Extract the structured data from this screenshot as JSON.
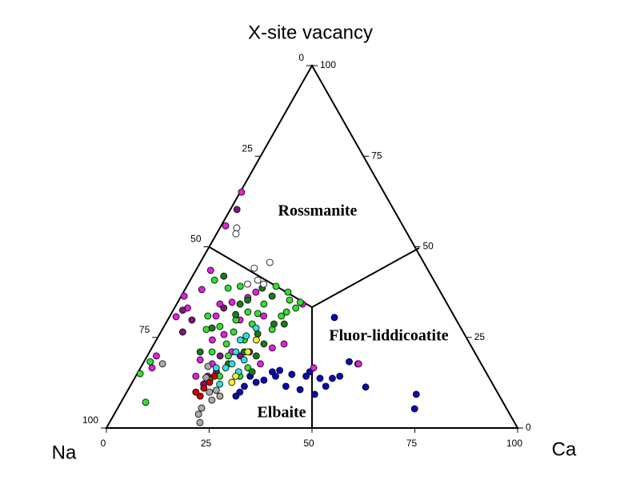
{
  "chart_data": {
    "type": "ternary",
    "top_label": "X-site vacancy",
    "left_label": "Na",
    "right_label": "Ca",
    "na_ticks": [
      0,
      25,
      50,
      75,
      100
    ],
    "vacancy_ticks": [
      0,
      25,
      50,
      75,
      100
    ],
    "ca_ticks": [
      0,
      25,
      50,
      75,
      100
    ],
    "fields": [
      "Rossmanite",
      "Fluor-liddicoatite",
      "Elbaite"
    ],
    "series": [
      {
        "color": "#0a0ab4",
        "x": [
          40.2,
          41.7,
          45.1,
          48.1,
          49.6,
          49.9,
          52.3,
          57.4,
          47.6,
          46.0,
          41.8,
          37.9,
          34.0,
          34.2,
          32.6,
          31.7,
          30.1,
          27.8,
          27.8,
          27.5,
          27.1,
          70.7,
          72.3,
          41.4,
          37.7
        ],
        "values": [
          30.5,
          15.5,
          13.7,
          13.7,
          14.3,
          18.3,
          17.7,
          11.3,
          11.5,
          9.3,
          10.6,
          11.5,
          14.3,
          15.9,
          15.5,
          13.2,
          12.6,
          14.3,
          11.5,
          9.9,
          8.8,
          9.3,
          5.3,
          14.3,
          14.8
        ]
      },
      {
        "color": "#dd22dd",
        "x": [
          0.3,
          1.1,
          3.6,
          4.1,
          3.2,
          1.6,
          0.7,
          2.2,
          2.8,
          10.5,
          11.2,
          13.2,
          16.4,
          17.6,
          15.7,
          13.6,
          17.6,
          22.8,
          29.3,
          31.6,
          13.4,
          14.6,
          16.9,
          20.0,
          28.6,
          30.6,
          42.1,
          52.5
        ],
        "values": [
          65.1,
          55.8,
          43.5,
          38.2,
          33.1,
          30.7,
          36.4,
          19.9,
          16.6,
          34.2,
          30.9,
          34.7,
          36.0,
          37.5,
          25.8,
          24.3,
          29.8,
          30.9,
          22.1,
          23.2,
          18.8,
          14.3,
          17.7,
          21.0,
          17.7,
          34.2,
          16.6,
          17.7
        ]
      },
      {
        "color": "#7a1a7a",
        "x": [
          1.6,
          2.3,
          5.3,
          5.9,
          17.5,
          17.6,
          19.0,
          17.7,
          22.6,
          12.0,
          24.3
        ],
        "values": [
          60.3,
          32.5,
          26.5,
          29.8,
          14.3,
          12.1,
          15.5,
          19.9,
          19.9,
          33.1,
          21.0
        ]
      },
      {
        "color": "#33dd33",
        "x": [
          1.5,
          6.0,
          0.7,
          5.9,
          10.3,
          13.0,
          9.2,
          10.7,
          13.6,
          15.2,
          17.6,
          17.7,
          21.4,
          21.1,
          21.0,
          21.7,
          25.4,
          29.8,
          29.5,
          26.9,
          27.8,
          21.2,
          18.4,
          16.6,
          19.7,
          18.5,
          27.1,
          26.7,
          25.3,
          20.4,
          26.1
        ],
        "values": [
          18.3,
          7.1,
          15.0,
          40.8,
          38.6,
          39.1,
          30.9,
          27.2,
          28.0,
          21.0,
          23.2,
          26.5,
          24.3,
          28.7,
          31.6,
          39.1,
          37.5,
          34.7,
          33.1,
          35.3,
          32.0,
          34.2,
          32.0,
          29.8,
          19.9,
          13.2,
          30.9,
          27.2,
          14.3,
          14.3,
          16.6
        ]
      },
      {
        "color": "#1a7a1a",
        "x": [
          7.6,
          15.4,
          15.8,
          16.7,
          18.6,
          22.1,
          26.4,
          28.9,
          23.8,
          23.0,
          27.7,
          26.7,
          11.9,
          12.3,
          26.5,
          20.8
        ],
        "values": [
          41.9,
          34.2,
          31.3,
          35.3,
          38.6,
          36.4,
          28.7,
          28.7,
          26.0,
          21.0,
          15.5,
          23.2,
          27.6,
          21.0,
          19.9,
          17.7
        ]
      },
      {
        "color": "#33dddd",
        "x": [
          20.4,
          21.3,
          22.6,
          21.0,
          21.7,
          24.1,
          20.7,
          24.4,
          18.4,
          21.5
        ],
        "values": [
          24.3,
          25.4,
          27.6,
          21.0,
          17.7,
          18.8,
          16.6,
          15.5,
          16.6,
          12.1
        ]
      },
      {
        "color": "#ffffff",
        "x": [
          4.1,
          4.7,
          13.9,
          16.9,
          16.4,
          18.4,
          14.5
        ],
        "values": [
          55.2,
          53.6,
          44.1,
          45.7,
          40.8,
          39.7,
          39.7
        ]
      },
      {
        "color": "#aaaaaa",
        "x": [
          4.8,
          16.2,
          17.3,
          20.1,
          21.5,
          20.4,
          20.5,
          22.0,
          21.8,
          23.2
        ],
        "values": [
          17.7,
          17.0,
          13.9,
          9.9,
          10.4,
          5.5,
          3.8,
          1.5,
          7.7,
          8.8
        ]
      },
      {
        "color": "#cc0000",
        "x": [
          18.4,
          18.2,
          18.8,
          19.1,
          16.8
        ],
        "values": [
          8.8,
          11.0,
          12.6,
          14.3,
          9.9
        ]
      },
      {
        "color": "#eeee33",
        "x": [
          24.2,
          23.9,
          24.3,
          24.3
        ],
        "values": [
          12.6,
          21.0,
          24.3,
          14.3
        ]
      }
    ]
  }
}
